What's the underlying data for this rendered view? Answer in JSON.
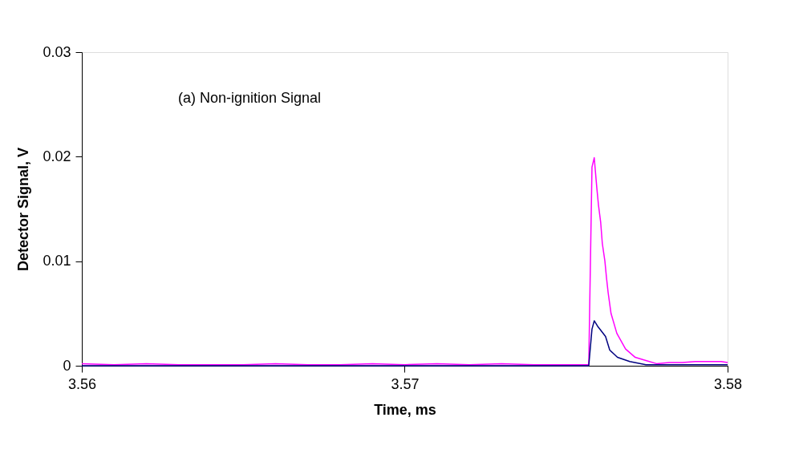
{
  "chart_data": {
    "type": "line",
    "xlabel": "Time, ms",
    "ylabel": "Detector Signal, V",
    "annotations": [
      "(a) Non-ignition Signal"
    ],
    "xlim": [
      3.56,
      3.58
    ],
    "xticks": [
      3.56,
      3.57,
      3.58
    ],
    "ylim": [
      0,
      0.03
    ],
    "yticks": [
      0,
      0.01,
      0.02,
      0.03
    ],
    "grid": false,
    "legend": false,
    "marker": "none",
    "line_style": "solid",
    "series": [
      {
        "color": "#ff00ff",
        "x": [
          3.56,
          3.561,
          3.562,
          3.563,
          3.564,
          3.565,
          3.566,
          3.567,
          3.568,
          3.569,
          3.57,
          3.571,
          3.572,
          3.573,
          3.574,
          3.575,
          3.5757,
          3.5758,
          3.57587,
          3.5759,
          3.57595,
          3.576,
          3.57607,
          3.57612,
          3.5762,
          3.57625,
          3.5763,
          3.57639,
          3.57657,
          3.57684,
          3.57714,
          3.57747,
          3.5778,
          3.5782,
          3.5786,
          3.579,
          3.5794,
          3.5798,
          3.58
        ],
        "values": [
          0.0002,
          0.0001,
          0.0002,
          0.0001,
          0.0001,
          0.0001,
          0.0002,
          0.0001,
          0.0001,
          0.0002,
          0.0001,
          0.0002,
          0.0001,
          0.0002,
          0.0001,
          0.0001,
          0.0001,
          0.019,
          0.0199,
          0.0188,
          0.017,
          0.0154,
          0.0137,
          0.0117,
          0.01,
          0.0084,
          0.007,
          0.005,
          0.0031,
          0.0016,
          0.0008,
          0.0005,
          0.0002,
          0.0003,
          0.0003,
          0.0004,
          0.0004,
          0.0004,
          0.0003
        ]
      },
      {
        "color": "#000080",
        "x": [
          3.56,
          3.565,
          3.57,
          3.5757,
          3.5758,
          3.57587,
          3.57597,
          3.57622,
          3.57635,
          3.57659,
          3.57697,
          3.57747,
          3.578,
          3.579,
          3.58
        ],
        "values": [
          0.0,
          0.0,
          0.0,
          0.0,
          0.0035,
          0.0043,
          0.0038,
          0.0028,
          0.0015,
          0.0008,
          0.0004,
          0.0001,
          0.0001,
          0.0001,
          0.0001
        ]
      }
    ]
  }
}
